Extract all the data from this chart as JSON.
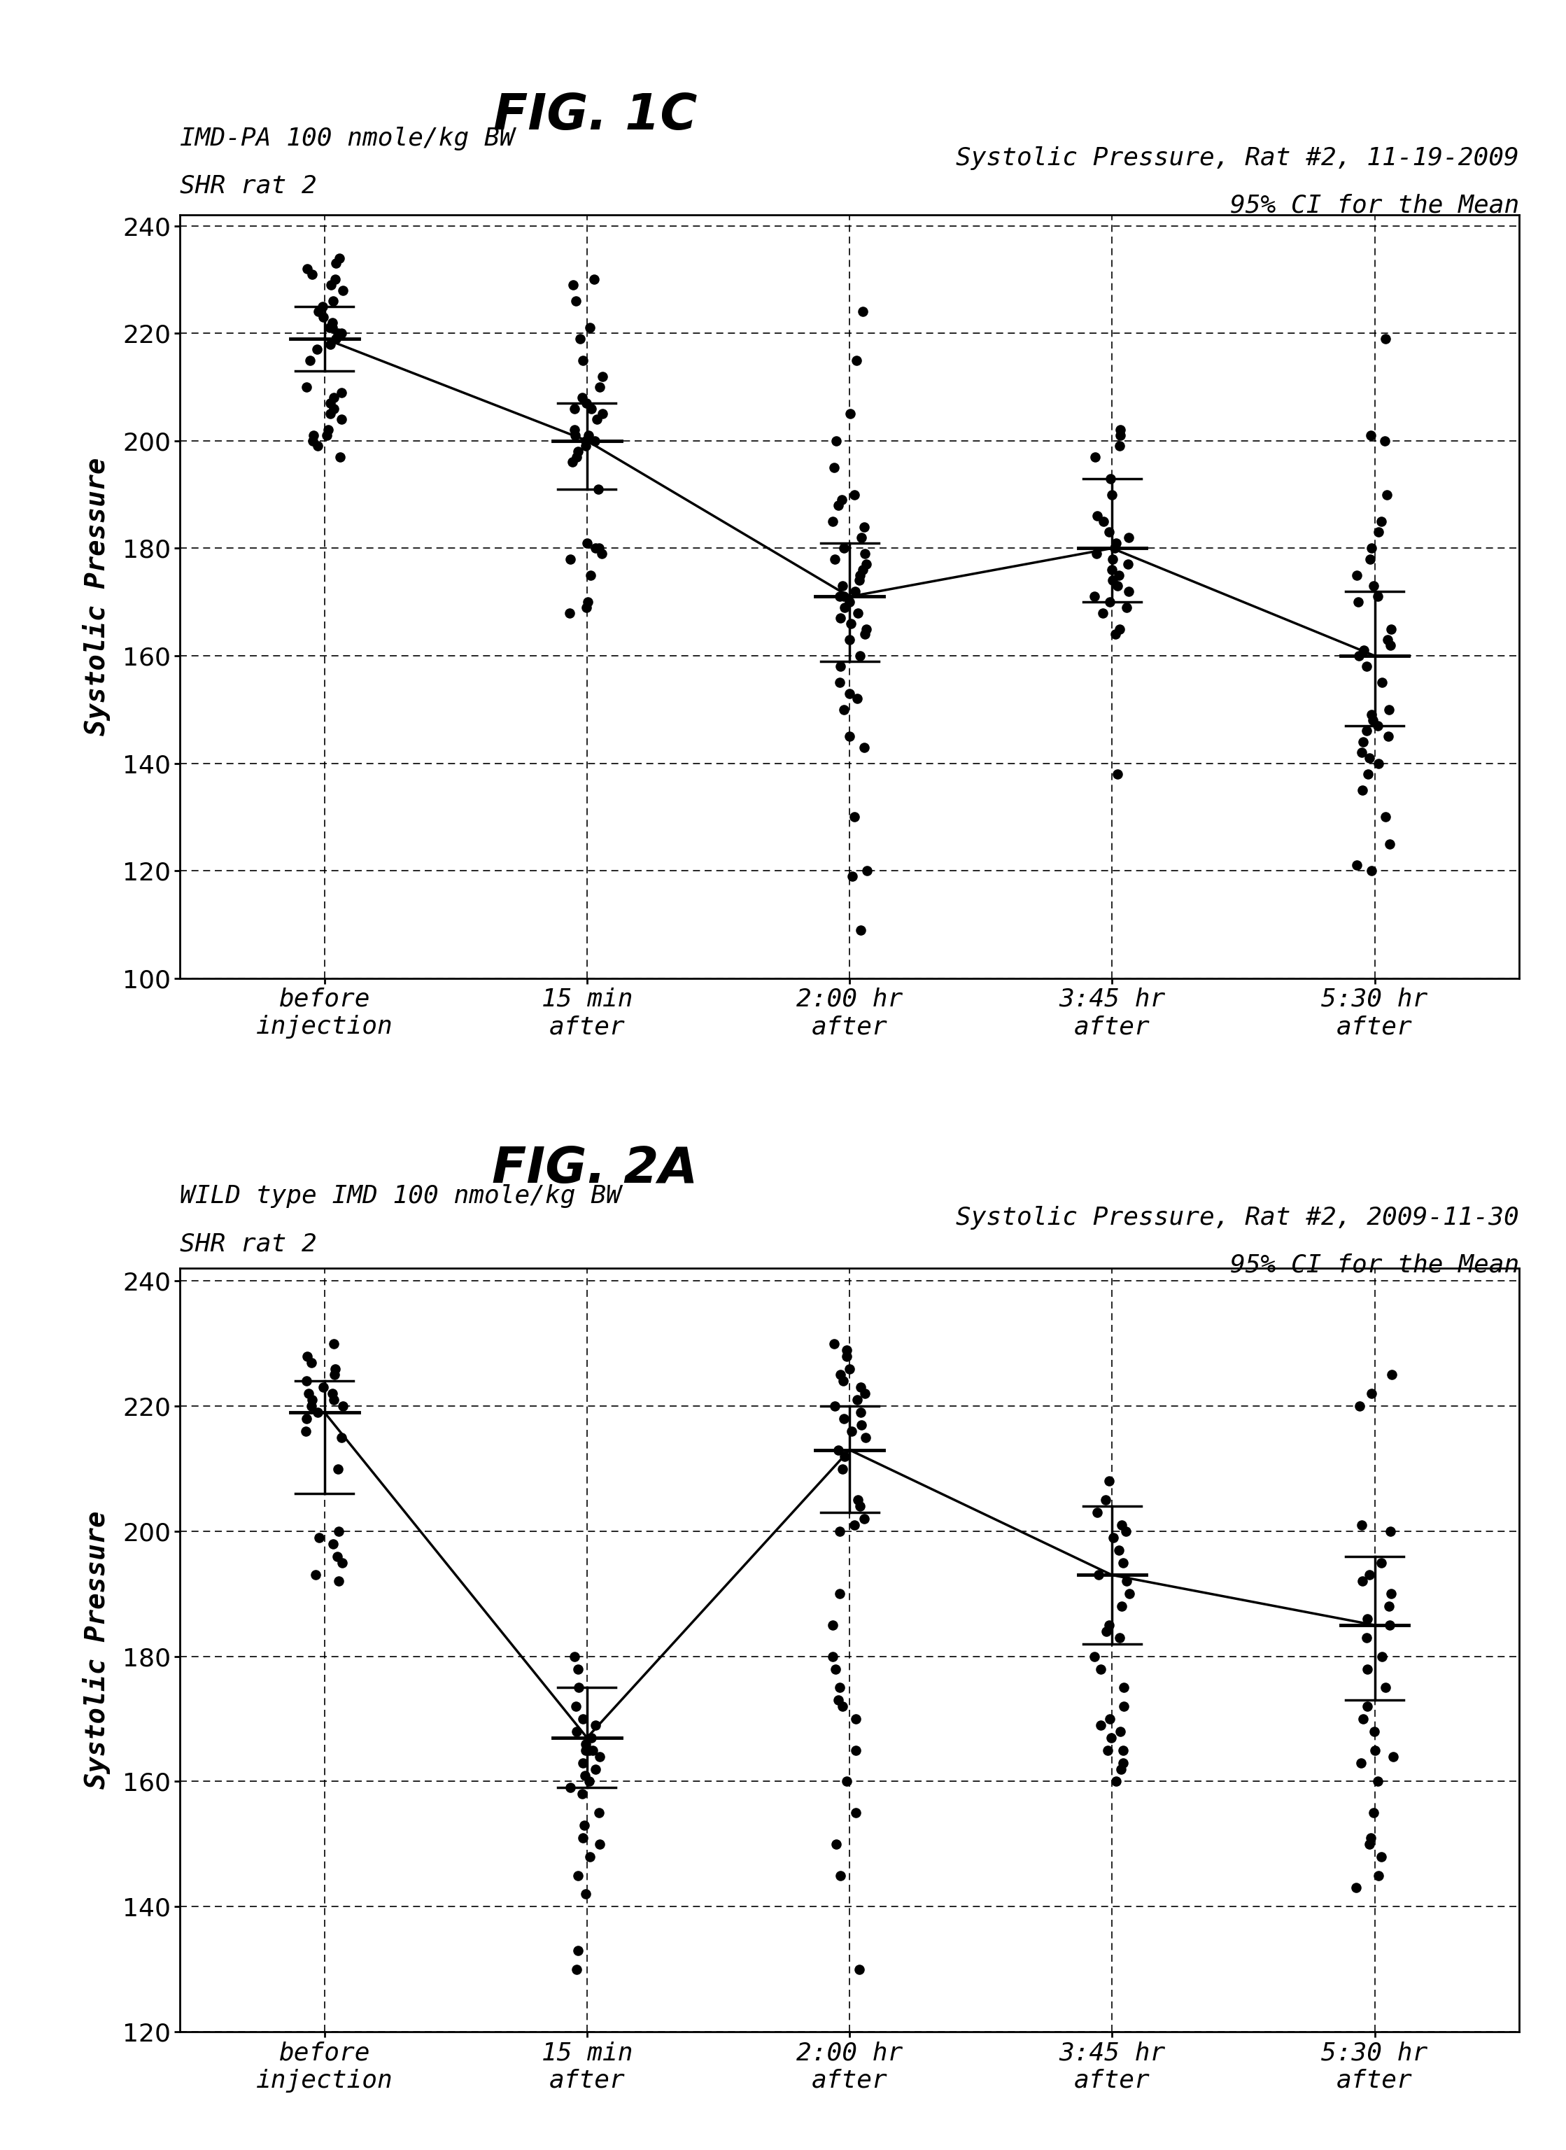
{
  "fig1c_title": "FIG. 1C",
  "fig1c_label_left1": "IMD-PA 100 nmole/kg BW",
  "fig1c_label_left2": "SHR rat 2",
  "fig1c_label_right1": "Systolic Pressure, Rat #2, 11-19-2009",
  "fig1c_label_right2": "95% CI for the Mean",
  "fig2a_title": "FIG. 2A",
  "fig2a_label_left1": "WILD type IMD 100 nmole/kg BW",
  "fig2a_label_left2": "SHR rat 2",
  "fig2a_label_right1": "Systolic Pressure, Rat #2, 2009-11-30",
  "fig2a_label_right2": "95% CI for the Mean",
  "ylabel": "Systolic Pressure",
  "xtick_labels": [
    "before\ninjection",
    "15 min\nafter",
    "2:00 hr\nafter",
    "3:45 hr\nafter",
    "5:30 hr\nafter"
  ],
  "fig1c_ylim": [
    100,
    242
  ],
  "fig1c_yticks": [
    100,
    120,
    140,
    160,
    180,
    200,
    220,
    240
  ],
  "fig1c_means": [
    219,
    200,
    171,
    180,
    160
  ],
  "fig1c_ci_low": [
    213,
    191,
    159,
    170,
    147
  ],
  "fig1c_ci_high": [
    225,
    207,
    181,
    193,
    172
  ],
  "fig1c_data": [
    [
      197,
      199,
      200,
      201,
      201,
      202,
      204,
      205,
      206,
      207,
      208,
      209,
      210,
      215,
      217,
      218,
      219,
      220,
      220,
      221,
      221,
      222,
      223,
      224,
      225,
      226,
      228,
      229,
      230,
      231,
      232,
      233,
      234
    ],
    [
      168,
      169,
      170,
      175,
      178,
      179,
      180,
      180,
      181,
      191,
      196,
      197,
      198,
      199,
      200,
      200,
      201,
      201,
      202,
      204,
      205,
      206,
      206,
      207,
      208,
      210,
      212,
      215,
      219,
      221,
      226,
      229,
      230
    ],
    [
      109,
      119,
      120,
      130,
      143,
      145,
      150,
      152,
      153,
      155,
      158,
      160,
      163,
      164,
      165,
      166,
      167,
      168,
      169,
      170,
      171,
      171,
      172,
      173,
      174,
      175,
      176,
      177,
      178,
      179,
      180,
      182,
      184,
      185,
      188,
      189,
      190,
      195,
      200,
      205,
      215,
      224
    ],
    [
      138,
      164,
      165,
      168,
      169,
      170,
      171,
      172,
      173,
      174,
      175,
      176,
      177,
      178,
      179,
      180,
      181,
      182,
      183,
      185,
      186,
      190,
      193,
      197,
      199,
      201,
      202
    ],
    [
      120,
      121,
      125,
      130,
      135,
      138,
      140,
      141,
      142,
      144,
      145,
      146,
      147,
      148,
      149,
      150,
      155,
      158,
      160,
      161,
      162,
      163,
      165,
      170,
      171,
      173,
      175,
      178,
      180,
      183,
      185,
      190,
      200,
      201,
      219
    ]
  ],
  "fig2a_ylim": [
    120,
    242
  ],
  "fig2a_yticks": [
    120,
    140,
    160,
    180,
    200,
    220,
    240
  ],
  "fig2a_means": [
    219,
    167,
    213,
    193,
    185
  ],
  "fig2a_ci_low": [
    206,
    159,
    203,
    182,
    173
  ],
  "fig2a_ci_high": [
    224,
    175,
    220,
    204,
    196
  ],
  "fig2a_data": [
    [
      192,
      193,
      195,
      196,
      198,
      199,
      200,
      210,
      215,
      216,
      218,
      219,
      220,
      220,
      221,
      221,
      222,
      222,
      223,
      224,
      225,
      226,
      227,
      228,
      230
    ],
    [
      130,
      133,
      142,
      145,
      148,
      150,
      151,
      153,
      155,
      158,
      159,
      160,
      161,
      162,
      163,
      164,
      165,
      165,
      165,
      166,
      167,
      168,
      169,
      170,
      172,
      175,
      178,
      180
    ],
    [
      130,
      145,
      150,
      155,
      160,
      165,
      170,
      172,
      173,
      175,
      178,
      180,
      185,
      190,
      200,
      201,
      202,
      204,
      205,
      210,
      212,
      213,
      215,
      216,
      217,
      218,
      219,
      220,
      221,
      222,
      223,
      224,
      225,
      226,
      228,
      229,
      230
    ],
    [
      160,
      162,
      163,
      165,
      165,
      167,
      168,
      169,
      170,
      172,
      175,
      178,
      180,
      183,
      184,
      185,
      188,
      190,
      192,
      193,
      195,
      197,
      199,
      200,
      201,
      203,
      205,
      208
    ],
    [
      143,
      145,
      148,
      150,
      151,
      155,
      160,
      163,
      164,
      165,
      168,
      170,
      172,
      175,
      178,
      180,
      183,
      185,
      186,
      188,
      190,
      192,
      193,
      195,
      200,
      201,
      220,
      222,
      225
    ]
  ]
}
